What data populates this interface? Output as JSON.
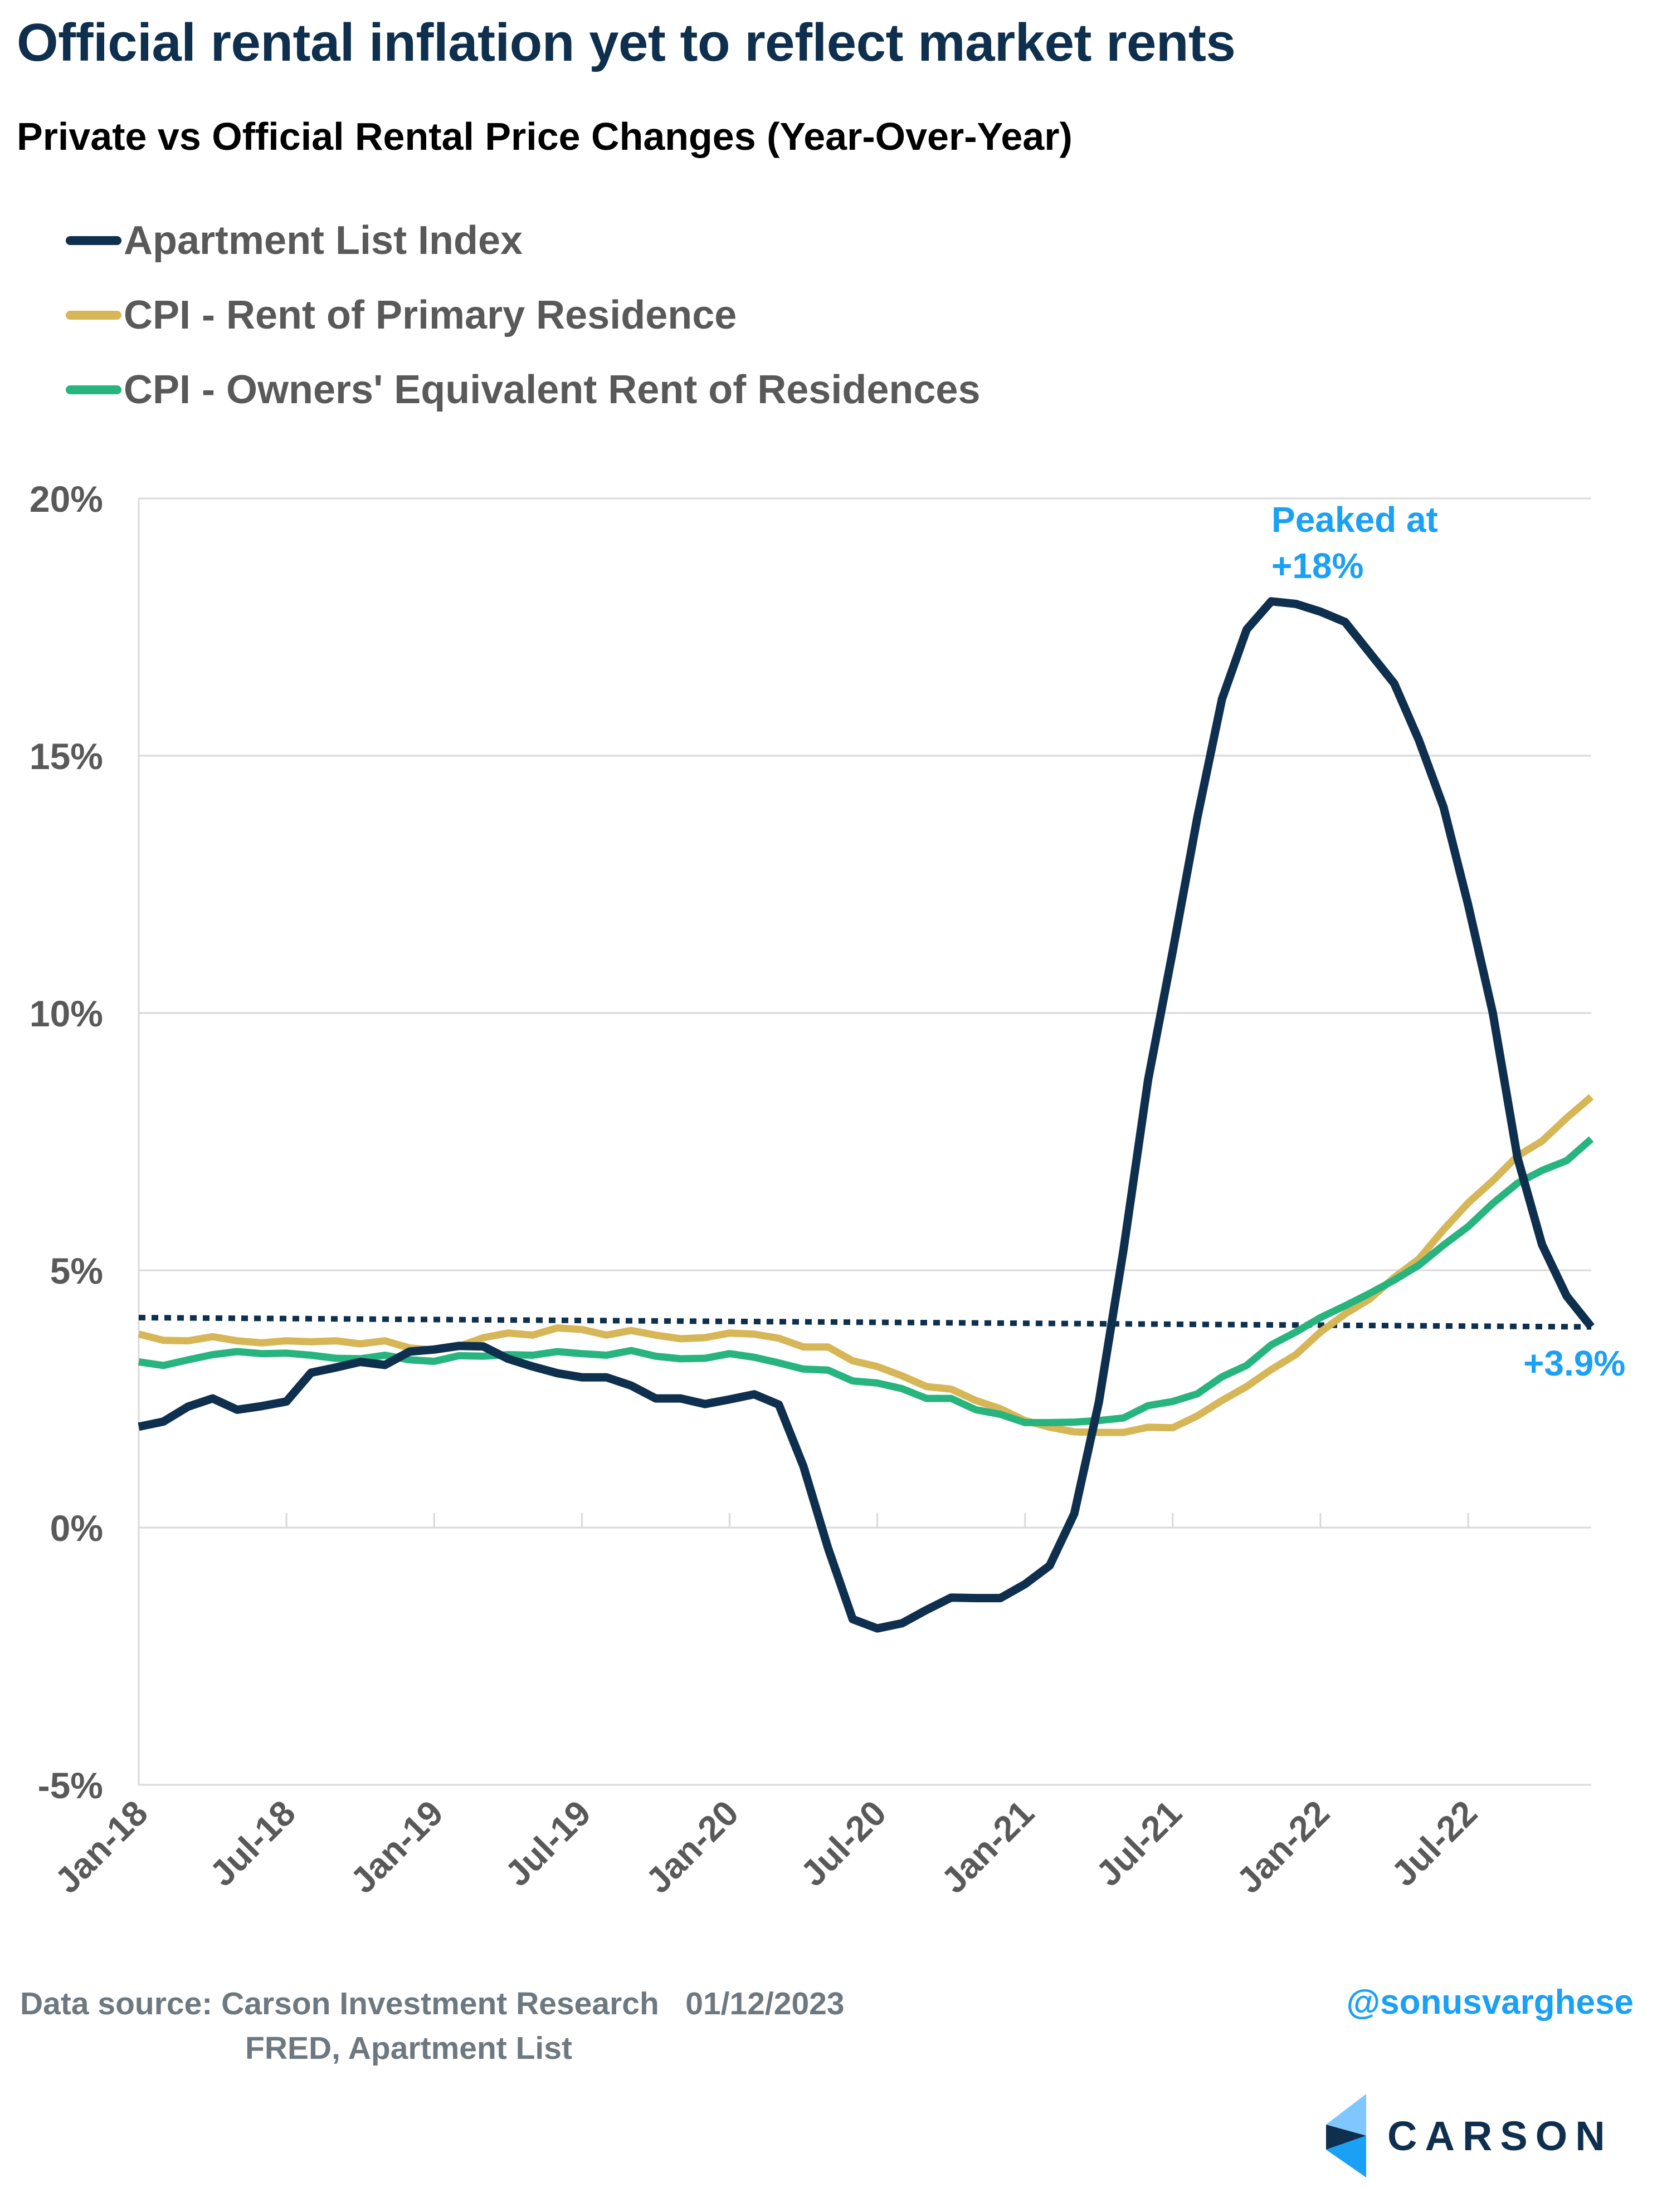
{
  "header": {
    "title": "Official rental inflation yet to reflect market rents",
    "subtitle": "Private vs Official Rental Price Changes (Year-Over-Year)"
  },
  "legend": [
    {
      "label": "Apartment List Index",
      "color": "#0e2f4d"
    },
    {
      "label": "CPI - Rent of Primary Residence",
      "color": "#d6b657"
    },
    {
      "label": "CPI - Owners' Equivalent Rent of Residences",
      "color": "#27b47e"
    }
  ],
  "annotations": {
    "peak_line1": "Peaked at",
    "peak_line2": "+18%",
    "latest": "+3.9%",
    "color": "#1aa0f5"
  },
  "footer": {
    "source_line1": "Data source: Carson Investment Research   01/12/2023",
    "source_line2": "FRED, Apartment List",
    "handle": "@sonusvarghese",
    "logo_text": "CARSON"
  },
  "chart_data": {
    "type": "line",
    "title": "Private vs Official Rental Price Changes (Year-Over-Year)",
    "xlabel": "",
    "ylabel": "",
    "ylim": [
      -5,
      20
    ],
    "yticks": [
      -5,
      0,
      5,
      10,
      15,
      20
    ],
    "ytick_labels": [
      "-5%",
      "0%",
      "5%",
      "10%",
      "15%",
      "20%"
    ],
    "xtick_labels": [
      "Jan-18",
      "Jul-18",
      "Jan-19",
      "Jul-19",
      "Jan-20",
      "Jul-20",
      "Jan-21",
      "Jul-21",
      "Jan-22",
      "Jul-22"
    ],
    "xtick_indices": [
      0,
      6,
      12,
      18,
      24,
      30,
      36,
      42,
      48,
      54
    ],
    "grid": "horizontal",
    "legend_position": "top-left",
    "x_start": "Jan-18",
    "x_end": "Dec-22",
    "frequency": "monthly",
    "series": [
      {
        "name": "Apartment List Index",
        "color": "#0e2f4d",
        "values": [
          1.96,
          2.06,
          2.35,
          2.51,
          2.29,
          2.36,
          2.45,
          3.01,
          3.11,
          3.22,
          3.16,
          3.42,
          3.46,
          3.53,
          3.52,
          3.28,
          3.13,
          3.0,
          2.92,
          2.92,
          2.76,
          2.51,
          2.51,
          2.4,
          2.49,
          2.59,
          2.39,
          1.19,
          -0.4,
          -1.78,
          -1.96,
          -1.86,
          -1.6,
          -1.36,
          -1.37,
          -1.37,
          -1.1,
          -0.74,
          0.27,
          2.44,
          5.4,
          8.7,
          11.2,
          13.8,
          16.1,
          17.45,
          18.0,
          17.95,
          17.8,
          17.6,
          17.0,
          16.4,
          15.3,
          14.0,
          12.1,
          10.0,
          7.2,
          5.5,
          4.5,
          3.9
        ]
      },
      {
        "name": "CPI - Rent of Primary Residence",
        "color": "#d6b657",
        "values": [
          3.76,
          3.64,
          3.63,
          3.71,
          3.63,
          3.59,
          3.63,
          3.61,
          3.63,
          3.57,
          3.63,
          3.49,
          3.45,
          3.52,
          3.69,
          3.78,
          3.74,
          3.88,
          3.85,
          3.74,
          3.83,
          3.74,
          3.67,
          3.69,
          3.78,
          3.76,
          3.68,
          3.51,
          3.51,
          3.24,
          3.13,
          2.95,
          2.74,
          2.69,
          2.47,
          2.31,
          2.08,
          1.95,
          1.86,
          1.85,
          1.85,
          1.95,
          1.94,
          2.17,
          2.47,
          2.74,
          3.07,
          3.36,
          3.8,
          4.15,
          4.44,
          4.86,
          5.22,
          5.79,
          6.31,
          6.74,
          7.22,
          7.51,
          7.96,
          8.37
        ]
      },
      {
        "name": "CPI - Owners' Equivalent Rent of Residences",
        "color": "#27b47e",
        "values": [
          3.22,
          3.15,
          3.26,
          3.36,
          3.42,
          3.38,
          3.39,
          3.35,
          3.29,
          3.28,
          3.35,
          3.26,
          3.23,
          3.34,
          3.33,
          3.36,
          3.35,
          3.42,
          3.38,
          3.35,
          3.44,
          3.33,
          3.28,
          3.29,
          3.38,
          3.31,
          3.2,
          3.08,
          3.06,
          2.85,
          2.81,
          2.7,
          2.51,
          2.51,
          2.29,
          2.2,
          2.04,
          2.04,
          2.05,
          2.08,
          2.13,
          2.37,
          2.45,
          2.6,
          2.93,
          3.15,
          3.55,
          3.8,
          4.08,
          4.31,
          4.55,
          4.81,
          5.1,
          5.49,
          5.85,
          6.3,
          6.69,
          6.94,
          7.13,
          7.55
        ]
      },
      {
        "name": "Apartment List Index trend (dotted)",
        "color": "#0e2f4d",
        "style": "dotted",
        "start_value": 4.08,
        "end_value": 3.9
      }
    ],
    "annotations": [
      {
        "text": "Peaked at +18%",
        "series": "Apartment List Index",
        "at": "Nov-21",
        "value": 18.0
      },
      {
        "text": "+3.9%",
        "series": "Apartment List Index",
        "at": "Dec-22",
        "value": 3.9
      }
    ]
  }
}
